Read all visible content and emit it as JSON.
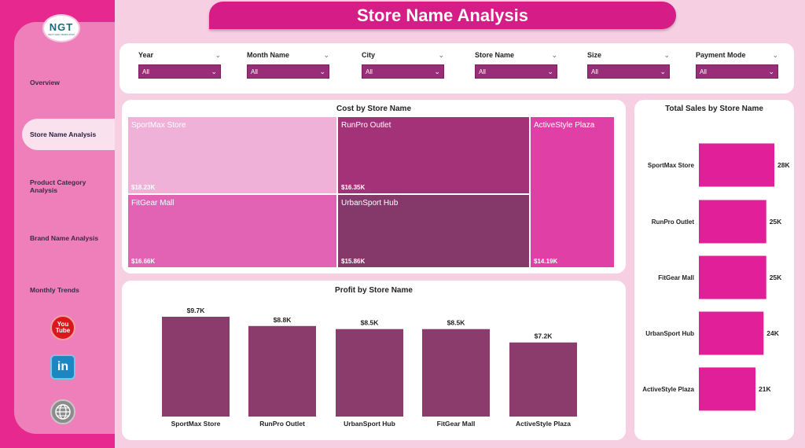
{
  "app": {
    "title": "Store Name Analysis",
    "logo_text": "NGT",
    "logo_subtext": "NEXT GEN TEMPLATES"
  },
  "sidebar": {
    "items": [
      {
        "label": "Overview",
        "active": false
      },
      {
        "label": "Store Name Analysis",
        "active": true
      },
      {
        "label": "Product Category Analysis",
        "active": false
      },
      {
        "label": "Brand Name Analysis",
        "active": false
      },
      {
        "label": "Monthly Trends",
        "active": false
      }
    ],
    "social": {
      "youtube": "You Tube",
      "linkedin": "in"
    }
  },
  "filters": [
    {
      "label": "Year",
      "value": "All"
    },
    {
      "label": "Month Name",
      "value": "All"
    },
    {
      "label": "City",
      "value": "All"
    },
    {
      "label": "Store Name",
      "value": "All"
    },
    {
      "label": "Size",
      "value": "All"
    },
    {
      "label": "Payment Mode",
      "value": "All"
    }
  ],
  "colors": {
    "accent": "#d51c87",
    "sidebar": "#e6288f",
    "bar_profit": "#8b3c6d",
    "bar_sales": "#e01f98"
  },
  "chart_data": [
    {
      "type": "treemap",
      "title": "Cost by Store Name",
      "items": [
        {
          "name": "SportMax Store",
          "value": 18.23,
          "label": "$18.23K",
          "color": "#f0b1d8"
        },
        {
          "name": "RunPro Outlet",
          "value": 16.35,
          "label": "$16.35K",
          "color": "#a33278"
        },
        {
          "name": "ActiveStyle Plaza",
          "value": 14.19,
          "label": "$14.19K",
          "color": "#e040a6"
        },
        {
          "name": "FitGear Mall",
          "value": 16.66,
          "label": "$16.66K",
          "color": "#e262b4"
        },
        {
          "name": "UrbanSport Hub",
          "value": 15.86,
          "label": "$15.86K",
          "color": "#85396b"
        }
      ]
    },
    {
      "type": "bar",
      "title": "Profit by Store Name",
      "categories": [
        "SportMax Store",
        "RunPro Outlet",
        "UrbanSport Hub",
        "FitGear Mall",
        "ActiveStyle Plaza"
      ],
      "values": [
        9.7,
        8.8,
        8.5,
        8.5,
        7.2
      ],
      "labels": [
        "$9.7K",
        "$8.8K",
        "$8.5K",
        "$8.5K",
        "$7.2K"
      ],
      "ylim": [
        0,
        9.7
      ]
    },
    {
      "type": "bar",
      "orientation": "horizontal",
      "title": "Total Sales by Store Name",
      "categories": [
        "SportMax Store",
        "RunPro Outlet",
        "FitGear Mall",
        "UrbanSport Hub",
        "ActiveStyle Plaza"
      ],
      "values": [
        28,
        25,
        25,
        24,
        21
      ],
      "labels": [
        "28K",
        "25K",
        "25K",
        "24K",
        "21K"
      ],
      "xlim": [
        0,
        28
      ]
    }
  ]
}
